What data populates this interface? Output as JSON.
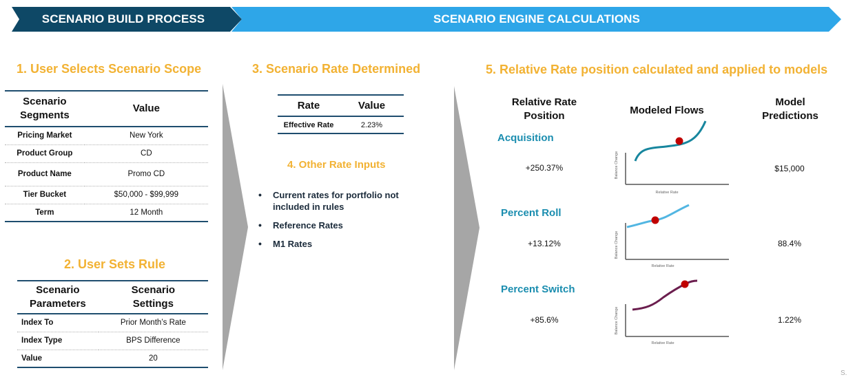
{
  "banners": {
    "build": "SCENARIO BUILD PROCESS",
    "engine": "SCENARIO ENGINE CALCULATIONS"
  },
  "colors": {
    "build_banner": "#0E4866",
    "engine_banner": "#2EA6E8",
    "heading": "#F2B233",
    "flow_label": "#1A8DAF",
    "table_rule": "#1E4D6E",
    "chevron": "#A6A6A6",
    "marker": "#C00000"
  },
  "step1": {
    "title": "1. User Selects Scenario Scope",
    "headers": [
      "Scenario Segments",
      "Value"
    ],
    "rows": [
      [
        "Pricing Market",
        "New York"
      ],
      [
        "Product Group",
        "CD"
      ],
      [
        "Product Name",
        "Promo CD"
      ],
      [
        "Tier Bucket",
        "$50,000 - $99,999"
      ],
      [
        "Term",
        "12 Month"
      ]
    ]
  },
  "step2": {
    "title": "2. User Sets Rule",
    "headers": [
      "Scenario Parameters",
      "Scenario Settings"
    ],
    "rows": [
      [
        "Index To",
        "Prior Month’s Rate"
      ],
      [
        "Index Type",
        "BPS Difference"
      ],
      [
        "Value",
        "20"
      ]
    ]
  },
  "step3": {
    "title": "3. Scenario Rate Determined",
    "headers": [
      "Rate",
      "Value"
    ],
    "rows": [
      [
        "Effective Rate",
        "2.23%"
      ]
    ]
  },
  "step4": {
    "title": "4. Other Rate Inputs",
    "items": [
      "Current rates for portfolio not included in rules",
      "Reference Rates",
      "M1 Rates"
    ]
  },
  "step5": {
    "title": "5. Relative Rate position calculated and applied to models",
    "col_headers": {
      "position": "Relative Rate Position",
      "flows": "Modeled Flows",
      "predictions": "Model Predictions"
    },
    "mini_chart_labels": {
      "x": "Relative Rate",
      "y": "Balance Change"
    },
    "flows": [
      {
        "name": "Acquisition",
        "position": "+250.37%",
        "prediction": "$15,000",
        "line_color": "#17869E",
        "icon": "s-curve-steep"
      },
      {
        "name": "Percent Roll",
        "position": "+13.12%",
        "prediction": "88.4%",
        "line_color": "#52B6E2",
        "icon": "s-curve-rising"
      },
      {
        "name": "Percent Switch",
        "position": "+85.6%",
        "prediction": "1.22%",
        "line_color": "#6B1E4E",
        "icon": "s-curve-gentle"
      }
    ]
  },
  "corner_mark": "S."
}
